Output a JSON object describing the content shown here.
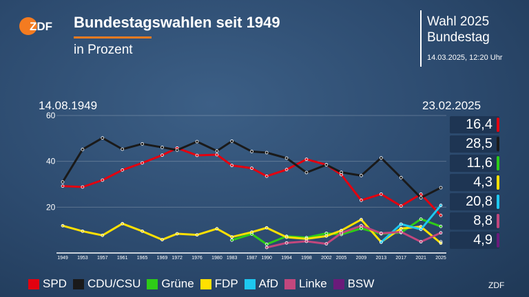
{
  "header": {
    "logo_text": "ZDF",
    "title": "Bundestagswahlen seit 1949",
    "subtitle": "in Prozent"
  },
  "side": {
    "line1": "Wahl 2025",
    "line2": "Bundestag",
    "timestamp": "14.03.2025, 12:20 Uhr"
  },
  "range": {
    "start": "14.08.1949",
    "end": "23.02.2025"
  },
  "source": "ZDF",
  "chart_data": {
    "type": "line",
    "xlabel": "",
    "ylabel": "",
    "ylim": [
      0,
      60
    ],
    "yticks": [
      20,
      40,
      60
    ],
    "grid": true,
    "legend": "bottom",
    "x": [
      "1949",
      "1953",
      "1957",
      "1961",
      "1965",
      "1969",
      "1972",
      "1976",
      "1980",
      "1983",
      "1987",
      "1990",
      "1994",
      "1998",
      "2002",
      "2005",
      "2009",
      "2013",
      "2017",
      "2021",
      "2025"
    ],
    "series": [
      {
        "name": "SPD",
        "color": "#e3000f",
        "values": [
          29.2,
          28.8,
          31.8,
          36.2,
          39.3,
          42.7,
          45.8,
          42.6,
          42.9,
          38.2,
          37.0,
          33.5,
          36.4,
          40.9,
          38.5,
          34.2,
          23.0,
          25.7,
          20.5,
          25.7,
          16.4
        ]
      },
      {
        "name": "CDU/CSU",
        "color": "#1a1a1a",
        "values": [
          31.0,
          45.2,
          50.2,
          45.3,
          47.6,
          46.1,
          44.9,
          48.6,
          44.5,
          48.8,
          44.3,
          43.8,
          41.4,
          35.1,
          38.5,
          35.2,
          33.8,
          41.5,
          32.9,
          24.1,
          28.5
        ]
      },
      {
        "name": "Grüne",
        "color": "#2ecc17",
        "values": [
          null,
          null,
          null,
          null,
          null,
          null,
          null,
          null,
          null,
          5.6,
          8.3,
          3.8,
          7.3,
          6.7,
          8.6,
          8.1,
          10.7,
          8.4,
          8.9,
          14.8,
          11.6
        ]
      },
      {
        "name": "FDP",
        "color": "#ffe000",
        "values": [
          11.9,
          9.5,
          7.7,
          12.8,
          9.5,
          5.8,
          8.4,
          7.9,
          10.6,
          7.0,
          9.1,
          11.0,
          6.9,
          6.2,
          7.4,
          9.8,
          14.6,
          4.8,
          10.7,
          11.5,
          4.3
        ]
      },
      {
        "name": "AfD",
        "color": "#1ec8f0",
        "values": [
          null,
          null,
          null,
          null,
          null,
          null,
          null,
          null,
          null,
          null,
          null,
          null,
          null,
          null,
          null,
          null,
          null,
          4.7,
          12.6,
          10.3,
          20.8
        ]
      },
      {
        "name": "Linke",
        "color": "#c2477d",
        "values": [
          null,
          null,
          null,
          null,
          null,
          null,
          null,
          null,
          null,
          null,
          null,
          2.4,
          4.4,
          5.1,
          4.0,
          8.7,
          11.9,
          8.6,
          9.2,
          4.9,
          8.8
        ]
      },
      {
        "name": "BSW",
        "color": "#6a1b7a",
        "values": [
          null,
          null,
          null,
          null,
          null,
          null,
          null,
          null,
          null,
          null,
          null,
          null,
          null,
          null,
          null,
          null,
          null,
          null,
          null,
          null,
          4.9
        ]
      }
    ],
    "results_2025": [
      "16,4",
      "28,5",
      "11,6",
      "4,3",
      "20,8",
      "8,8",
      "4,9"
    ],
    "results_colors": [
      "#e3000f",
      "#1a1a1a",
      "#2ecc17",
      "#ffe000",
      "#1ec8f0",
      "#c2477d",
      "#6a1b7a"
    ]
  }
}
